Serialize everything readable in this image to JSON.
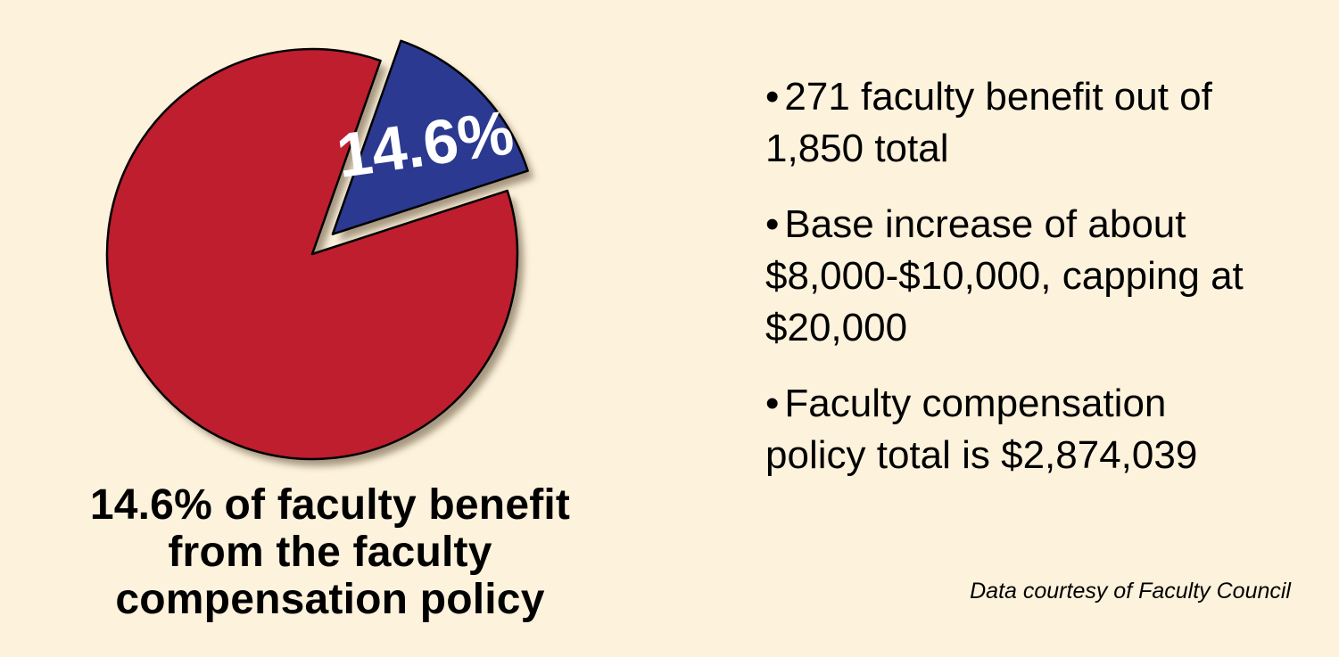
{
  "chart_data": {
    "type": "pie",
    "slices": [
      {
        "label": "14.6%",
        "value": 14.6,
        "color": "#2b3990",
        "exploded": true
      },
      {
        "label": "",
        "value": 85.4,
        "color": "#be1e2d",
        "exploded": false
      }
    ]
  },
  "caption": {
    "line1": "14.6% of faculty benefit",
    "line2": "from the faculty",
    "line3": "compensation policy"
  },
  "bullets": [
    {
      "marker": "•",
      "line1": "271 faculty benefit out of",
      "line2": "1,850 total"
    },
    {
      "marker": "•",
      "line1": "Base increase of about",
      "line2": "$8,000-$10,000, capping at",
      "line3": "$20,000"
    },
    {
      "marker": "•",
      "line1": "Faculty compensation",
      "line2": "policy total is $2,874,039"
    }
  ],
  "source": "Data courtesy of Faculty Council",
  "colors": {
    "background": "#fdf2dc",
    "slice_outline": "#000000",
    "shadow": "#5e4e36",
    "slice_label": "#ffffff"
  }
}
